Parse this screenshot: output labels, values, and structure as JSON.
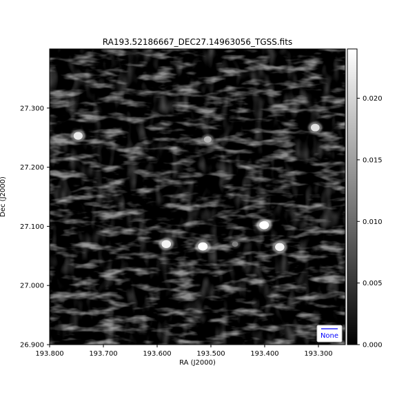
{
  "chart_data": {
    "type": "heatmap",
    "title": "RA193.52186667_DEC27.14963056_TGSS.fits",
    "xlabel": "RA (J2000)",
    "ylabel": "Dec (J2000)",
    "xlim": [
      193.8,
      193.25
    ],
    "ylim": [
      26.9,
      27.4
    ],
    "xticks": [
      {
        "value": 193.8,
        "label": "193.800"
      },
      {
        "value": 193.7,
        "label": "193.700"
      },
      {
        "value": 193.6,
        "label": "193.600"
      },
      {
        "value": 193.5,
        "label": "193.500"
      },
      {
        "value": 193.4,
        "label": "193.400"
      },
      {
        "value": 193.3,
        "label": "193.300"
      }
    ],
    "yticks": [
      {
        "value": 26.9,
        "label": "26.900"
      },
      {
        "value": 27.0,
        "label": "27.000"
      },
      {
        "value": 27.1,
        "label": "27.100"
      },
      {
        "value": 27.2,
        "label": "27.200"
      },
      {
        "value": 27.3,
        "label": "27.300"
      }
    ],
    "colormap": "gray",
    "colorbar": {
      "min": 0.0,
      "max": 0.024,
      "ticks": [
        {
          "value": 0.0,
          "label": "0.000"
        },
        {
          "value": 0.005,
          "label": "0.005"
        },
        {
          "value": 0.01,
          "label": "0.010"
        },
        {
          "value": 0.015,
          "label": "0.015"
        },
        {
          "value": 0.02,
          "label": "0.020"
        }
      ]
    },
    "sources": [
      {
        "ra": 193.747,
        "dec": 27.253,
        "intensity": 0.022
      },
      {
        "ra": 193.506,
        "dec": 27.247,
        "intensity": 0.017
      },
      {
        "ra": 193.306,
        "dec": 27.267,
        "intensity": 0.021
      },
      {
        "ra": 193.401,
        "dec": 27.102,
        "intensity": 0.024
      },
      {
        "ra": 193.583,
        "dec": 27.07,
        "intensity": 0.023
      },
      {
        "ra": 193.515,
        "dec": 27.066,
        "intensity": 0.024
      },
      {
        "ra": 193.455,
        "dec": 27.07,
        "intensity": 0.012
      },
      {
        "ra": 193.372,
        "dec": 27.065,
        "intensity": 0.023
      }
    ],
    "legend": {
      "placement": "lower-right",
      "entries": [
        "None"
      ],
      "color": "#0000ff"
    },
    "grid": false
  }
}
